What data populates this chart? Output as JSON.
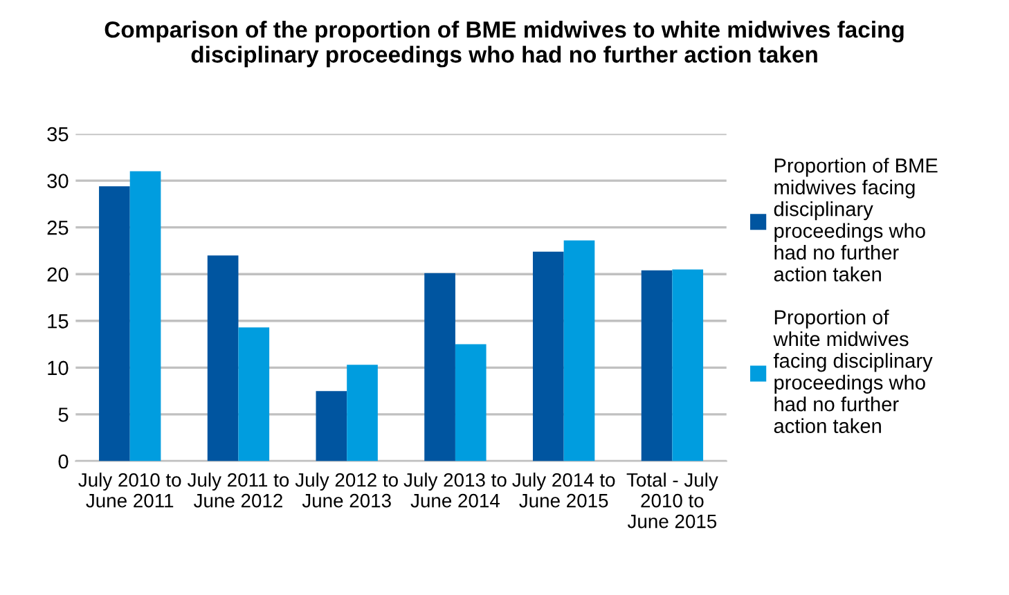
{
  "chart_data": {
    "type": "bar",
    "title": "Comparison of the proportion of BME midwives to white midwives facing\ndisciplinary proceedings who had no further action taken",
    "categories": [
      "July 2010 to\nJune 2011",
      "July 2011 to\nJune 2012",
      "July 2012 to\nJune 2013",
      "July 2013 to\nJune 2014",
      "July 2014 to\nJune 2015",
      "Total - July\n2010 to\nJune 2015"
    ],
    "series": [
      {
        "name": "Proportion of BME\nmidwives facing\ndisciplinary\nproceedings who\nhad no further\naction taken",
        "color": "#0055a0",
        "values": [
          29.4,
          22.0,
          7.5,
          20.1,
          22.4,
          20.4
        ]
      },
      {
        "name": "Proportion of\nwhite midwives\nfacing disciplinary\nproceedings who\nhad no further\naction taken",
        "color": "#009ddf",
        "values": [
          31.0,
          14.3,
          10.3,
          12.5,
          23.6,
          20.5
        ]
      }
    ],
    "ylim": [
      0,
      35
    ],
    "yticks": [
      0,
      5,
      10,
      15,
      20,
      25,
      30,
      35
    ],
    "grid": "y",
    "legend": "right"
  }
}
